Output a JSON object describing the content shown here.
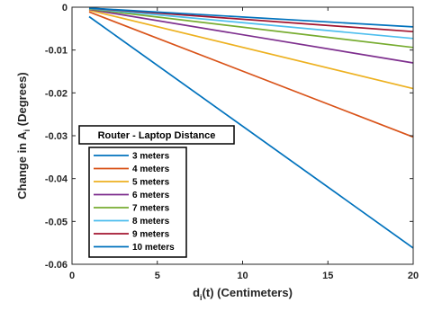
{
  "chart_data": {
    "type": "line",
    "xlabel": {
      "main": "d",
      "sub": "i",
      "rest": "(t) (Centimeters)"
    },
    "ylabel": {
      "main": "Change in A",
      "sub": "i",
      "rest": " (Degrees)"
    },
    "xlim": [
      0,
      20
    ],
    "ylim": [
      -0.06,
      0
    ],
    "xticks": [
      0,
      5,
      10,
      15,
      20
    ],
    "xtick_labels": [
      "0",
      "5",
      "10",
      "15",
      "20"
    ],
    "yticks": [
      0,
      -0.01,
      -0.02,
      -0.03,
      -0.04,
      -0.05,
      -0.06
    ],
    "ytick_labels": [
      "0",
      "-0.01",
      "-0.02",
      "-0.03",
      "-0.04",
      "-0.05",
      "-0.06"
    ],
    "grid": false,
    "legend": {
      "title": "Router - Laptop Distance",
      "placement": "center-left"
    },
    "series": [
      {
        "name": "3 meters",
        "color": "#0072BD",
        "x": [
          1,
          20
        ],
        "y": [
          -0.0022,
          -0.0562
        ]
      },
      {
        "name": "4 meters",
        "color": "#D95319",
        "x": [
          1,
          20
        ],
        "y": [
          -0.0011,
          -0.0303
        ]
      },
      {
        "name": "5 meters",
        "color": "#EDB120",
        "x": [
          1,
          20
        ],
        "y": [
          -0.0007,
          -0.019
        ]
      },
      {
        "name": "6 meters",
        "color": "#7E2F8E",
        "x": [
          1,
          20
        ],
        "y": [
          -0.0005,
          -0.013
        ]
      },
      {
        "name": "7 meters",
        "color": "#77AC30",
        "x": [
          1,
          20
        ],
        "y": [
          -0.0004,
          -0.0094
        ]
      },
      {
        "name": "8 meters",
        "color": "#4DBEEE",
        "x": [
          1,
          20
        ],
        "y": [
          -0.0003,
          -0.0073
        ]
      },
      {
        "name": "9 meters",
        "color": "#A2142F",
        "x": [
          1,
          20
        ],
        "y": [
          -0.0002,
          -0.0057
        ]
      },
      {
        "name": "10 meters",
        "color": "#0072BD",
        "x": [
          1,
          20
        ],
        "y": [
          -0.0002,
          -0.0046
        ]
      }
    ]
  }
}
